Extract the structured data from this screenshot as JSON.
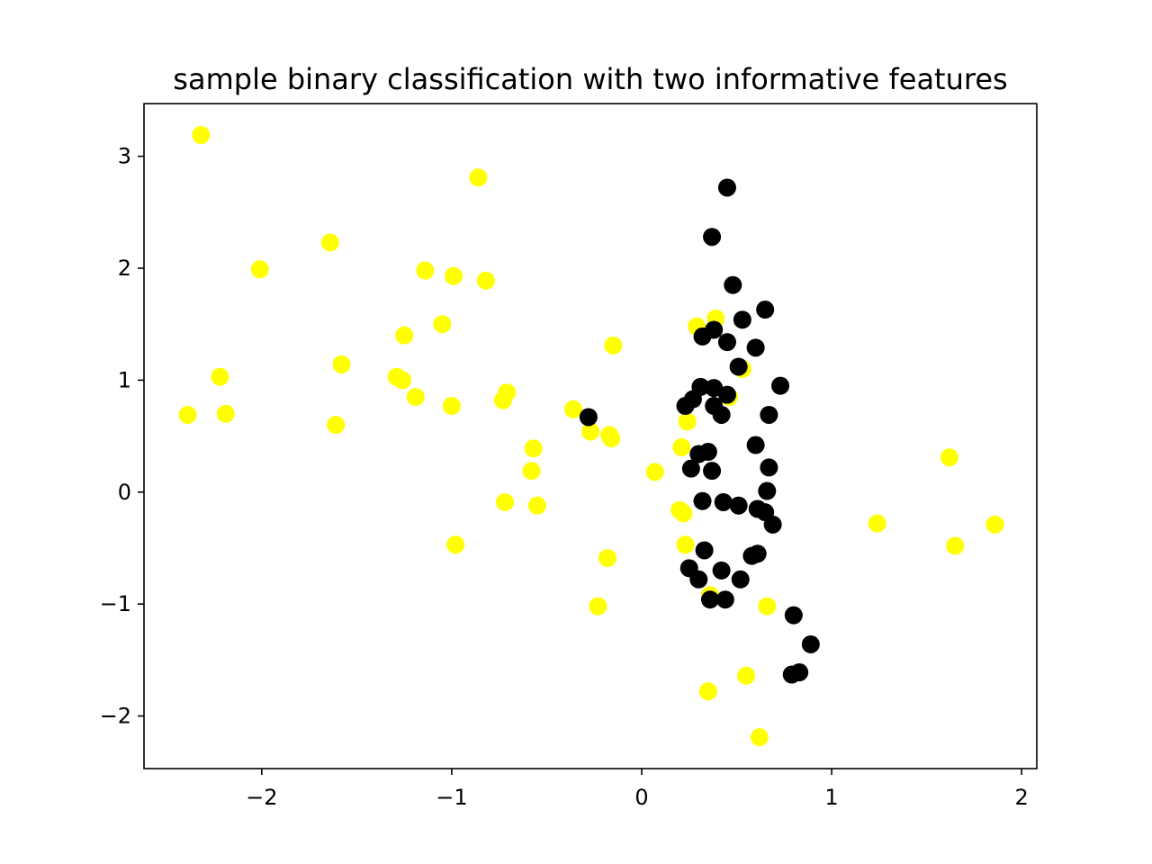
{
  "chart_data": {
    "type": "scatter",
    "title": "sample binary classification with two informative features",
    "xlabel": "",
    "ylabel": "",
    "xlim": [
      -2.62,
      2.08
    ],
    "ylim": [
      -2.47,
      3.47
    ],
    "xticks": [
      -2,
      -1,
      0,
      1,
      2
    ],
    "yticks": [
      -2,
      -1,
      0,
      1,
      2,
      3
    ],
    "xtick_labels": [
      "−2",
      "−1",
      "0",
      "1",
      "2"
    ],
    "ytick_labels": [
      "−2",
      "−1",
      "0",
      "1",
      "2",
      "3"
    ],
    "grid": false,
    "colors": {
      "class_0": "#ffff00",
      "class_1": "#000000"
    },
    "series": [
      {
        "color": "#ffff00",
        "points": [
          [
            -2.32,
            3.19
          ],
          [
            -0.86,
            2.81
          ],
          [
            -1.64,
            2.23
          ],
          [
            -2.01,
            1.99
          ],
          [
            -1.14,
            1.98
          ],
          [
            -0.99,
            1.93
          ],
          [
            -0.82,
            1.89
          ],
          [
            -1.05,
            1.5
          ],
          [
            -1.25,
            1.4
          ],
          [
            -1.58,
            1.14
          ],
          [
            -2.22,
            1.03
          ],
          [
            -1.29,
            1.03
          ],
          [
            -1.26,
            1.0
          ],
          [
            -1.19,
            0.85
          ],
          [
            -0.71,
            0.89
          ],
          [
            -0.73,
            0.82
          ],
          [
            -1.0,
            0.77
          ],
          [
            -2.39,
            0.69
          ],
          [
            -2.19,
            0.7
          ],
          [
            -1.61,
            0.6
          ],
          [
            -0.36,
            0.74
          ],
          [
            -0.27,
            0.54
          ],
          [
            -0.17,
            0.51
          ],
          [
            -0.16,
            0.48
          ],
          [
            -0.15,
            1.31
          ],
          [
            -0.57,
            0.39
          ],
          [
            -0.58,
            0.19
          ],
          [
            -0.72,
            -0.09
          ],
          [
            -0.55,
            -0.12
          ],
          [
            -0.98,
            -0.47
          ],
          [
            -0.18,
            -0.59
          ],
          [
            -0.23,
            -1.02
          ],
          [
            0.07,
            0.18
          ],
          [
            0.29,
            1.48
          ],
          [
            0.39,
            1.55
          ],
          [
            0.24,
            0.63
          ],
          [
            0.21,
            0.4
          ],
          [
            0.2,
            -0.16
          ],
          [
            0.22,
            -0.19
          ],
          [
            0.23,
            -0.47
          ],
          [
            0.36,
            -0.92
          ],
          [
            0.66,
            -1.02
          ],
          [
            0.55,
            -1.64
          ],
          [
            0.35,
            -1.78
          ],
          [
            0.62,
            -2.19
          ],
          [
            1.24,
            -0.28
          ],
          [
            1.62,
            0.31
          ],
          [
            1.65,
            -0.48
          ],
          [
            1.86,
            -0.29
          ],
          [
            0.53,
            1.1
          ],
          [
            0.46,
            0.85
          ]
        ]
      },
      {
        "color": "#000000",
        "points": [
          [
            0.45,
            2.72
          ],
          [
            0.37,
            2.28
          ],
          [
            0.48,
            1.85
          ],
          [
            0.65,
            1.63
          ],
          [
            0.53,
            1.54
          ],
          [
            0.38,
            1.45
          ],
          [
            0.32,
            1.39
          ],
          [
            0.45,
            1.34
          ],
          [
            0.6,
            1.29
          ],
          [
            0.51,
            1.12
          ],
          [
            0.73,
            0.95
          ],
          [
            0.31,
            0.94
          ],
          [
            0.38,
            0.93
          ],
          [
            0.45,
            0.87
          ],
          [
            0.27,
            0.83
          ],
          [
            0.23,
            0.77
          ],
          [
            0.38,
            0.77
          ],
          [
            0.42,
            0.69
          ],
          [
            0.67,
            0.69
          ],
          [
            -0.28,
            0.67
          ],
          [
            0.6,
            0.42
          ],
          [
            0.35,
            0.36
          ],
          [
            0.3,
            0.34
          ],
          [
            0.67,
            0.22
          ],
          [
            0.26,
            0.21
          ],
          [
            0.37,
            0.19
          ],
          [
            0.66,
            0.01
          ],
          [
            0.32,
            -0.08
          ],
          [
            0.43,
            -0.09
          ],
          [
            0.51,
            -0.12
          ],
          [
            0.61,
            -0.15
          ],
          [
            0.65,
            -0.18
          ],
          [
            0.69,
            -0.29
          ],
          [
            0.33,
            -0.52
          ],
          [
            0.58,
            -0.57
          ],
          [
            0.61,
            -0.55
          ],
          [
            0.25,
            -0.68
          ],
          [
            0.42,
            -0.7
          ],
          [
            0.3,
            -0.78
          ],
          [
            0.52,
            -0.78
          ],
          [
            0.36,
            -0.96
          ],
          [
            0.44,
            -0.96
          ],
          [
            0.8,
            -1.1
          ],
          [
            0.89,
            -1.36
          ],
          [
            0.79,
            -1.63
          ],
          [
            0.83,
            -1.61
          ]
        ]
      }
    ]
  }
}
